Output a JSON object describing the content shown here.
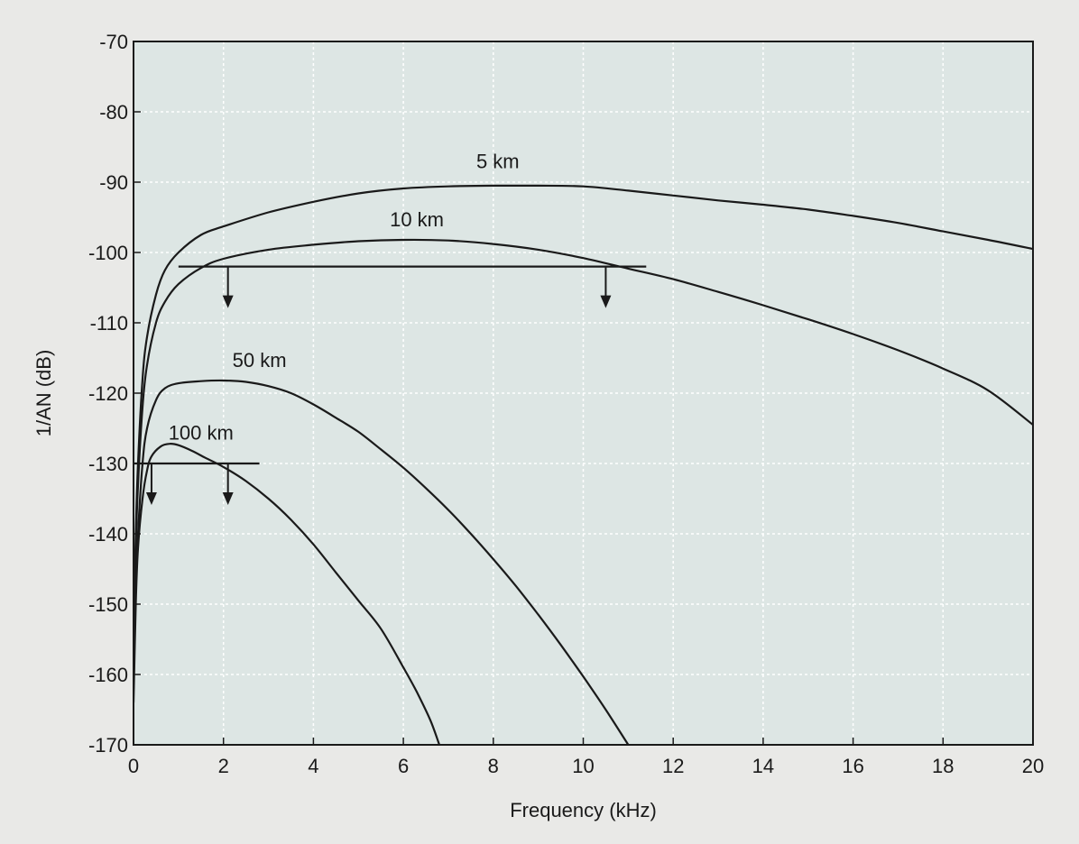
{
  "chart_data": {
    "type": "line",
    "title": "",
    "xlabel": "Frequency (kHz)",
    "ylabel": "1/AN (dB)",
    "xlim": [
      0,
      20
    ],
    "ylim": [
      -170,
      -70
    ],
    "xticks": [
      0,
      2,
      4,
      6,
      8,
      10,
      12,
      14,
      16,
      18,
      20
    ],
    "yticks": [
      -70,
      -80,
      -90,
      -100,
      -110,
      -120,
      -130,
      -140,
      -150,
      -160,
      -170
    ],
    "grid": true,
    "legend": "none",
    "colors": {
      "background": "#e9e9e7",
      "plot_area": "#dde6e4",
      "grid": "#ffffff",
      "line": "#1a1a1a"
    },
    "series": [
      {
        "name": "5 km",
        "label_at": [
          8.1,
          -88
        ],
        "x": [
          0,
          0.05,
          0.1,
          0.2,
          0.3,
          0.5,
          0.7,
          1,
          1.5,
          2,
          3,
          4,
          5,
          6,
          7,
          8,
          9,
          10,
          11,
          12,
          13,
          14,
          15,
          16,
          17,
          18,
          19,
          20
        ],
        "y": [
          -155,
          -140,
          -130,
          -118,
          -112,
          -106,
          -102.5,
          -100,
          -97.5,
          -96.3,
          -94.3,
          -92.8,
          -91.6,
          -90.9,
          -90.6,
          -90.5,
          -90.5,
          -90.6,
          -91.2,
          -91.9,
          -92.6,
          -93.2,
          -93.9,
          -94.8,
          -95.8,
          -97,
          -98.2,
          -99.5
        ]
      },
      {
        "name": "10 km",
        "label_at": [
          6.3,
          -96.3
        ],
        "x": [
          0,
          0.05,
          0.1,
          0.2,
          0.3,
          0.5,
          0.7,
          1,
          1.5,
          2,
          3,
          4,
          5,
          6,
          7,
          8,
          9,
          10,
          11,
          12,
          13,
          14,
          15,
          16,
          17,
          18,
          19,
          20
        ],
        "y": [
          -156,
          -142,
          -133,
          -122,
          -116,
          -110,
          -107,
          -104.5,
          -102.2,
          -100.9,
          -99.6,
          -98.9,
          -98.4,
          -98.2,
          -98.3,
          -98.8,
          -99.6,
          -100.8,
          -102.3,
          -103.8,
          -105.6,
          -107.5,
          -109.5,
          -111.6,
          -113.9,
          -116.5,
          -119.6,
          -124.5
        ]
      },
      {
        "name": "50 km",
        "label_at": [
          2.8,
          -116.3
        ],
        "x": [
          0,
          0.05,
          0.1,
          0.2,
          0.3,
          0.5,
          0.7,
          1,
          1.5,
          2,
          2.5,
          3,
          3.5,
          4,
          4.5,
          5,
          5.5,
          6,
          6.5,
          7,
          7.5,
          8,
          8.5,
          9,
          9.5,
          10,
          10.5,
          11
        ],
        "y": [
          -162,
          -148,
          -140,
          -130,
          -125,
          -121,
          -119.3,
          -118.6,
          -118.3,
          -118.2,
          -118.4,
          -119,
          -120,
          -121.6,
          -123.5,
          -125.5,
          -128,
          -130.6,
          -133.5,
          -136.6,
          -140,
          -143.6,
          -147.4,
          -151.5,
          -155.8,
          -160.3,
          -165,
          -170
        ]
      },
      {
        "name": "100 km",
        "label_at": [
          1.5,
          -126.6
        ],
        "x": [
          0,
          0.05,
          0.1,
          0.2,
          0.3,
          0.4,
          0.6,
          0.8,
          1,
          1.3,
          1.6,
          2,
          2.5,
          3,
          3.5,
          4,
          4.5,
          5,
          5.5,
          6,
          6.3,
          6.6,
          6.8
        ],
        "y": [
          -164,
          -150,
          -142,
          -135,
          -131,
          -129,
          -127.6,
          -127.2,
          -127.4,
          -128.2,
          -129.2,
          -130.5,
          -132.5,
          -135,
          -138,
          -141.5,
          -145.5,
          -149.5,
          -153.5,
          -159,
          -162.5,
          -166.5,
          -170
        ]
      }
    ],
    "threshold_lines": [
      {
        "x_start": 1.0,
        "x_end": 11.4,
        "y": -102,
        "arrows_at": [
          2.1,
          10.5
        ]
      },
      {
        "x_start": 0.0,
        "x_end": 2.8,
        "y": -130,
        "arrows_at": [
          0.4,
          2.1
        ]
      }
    ]
  }
}
